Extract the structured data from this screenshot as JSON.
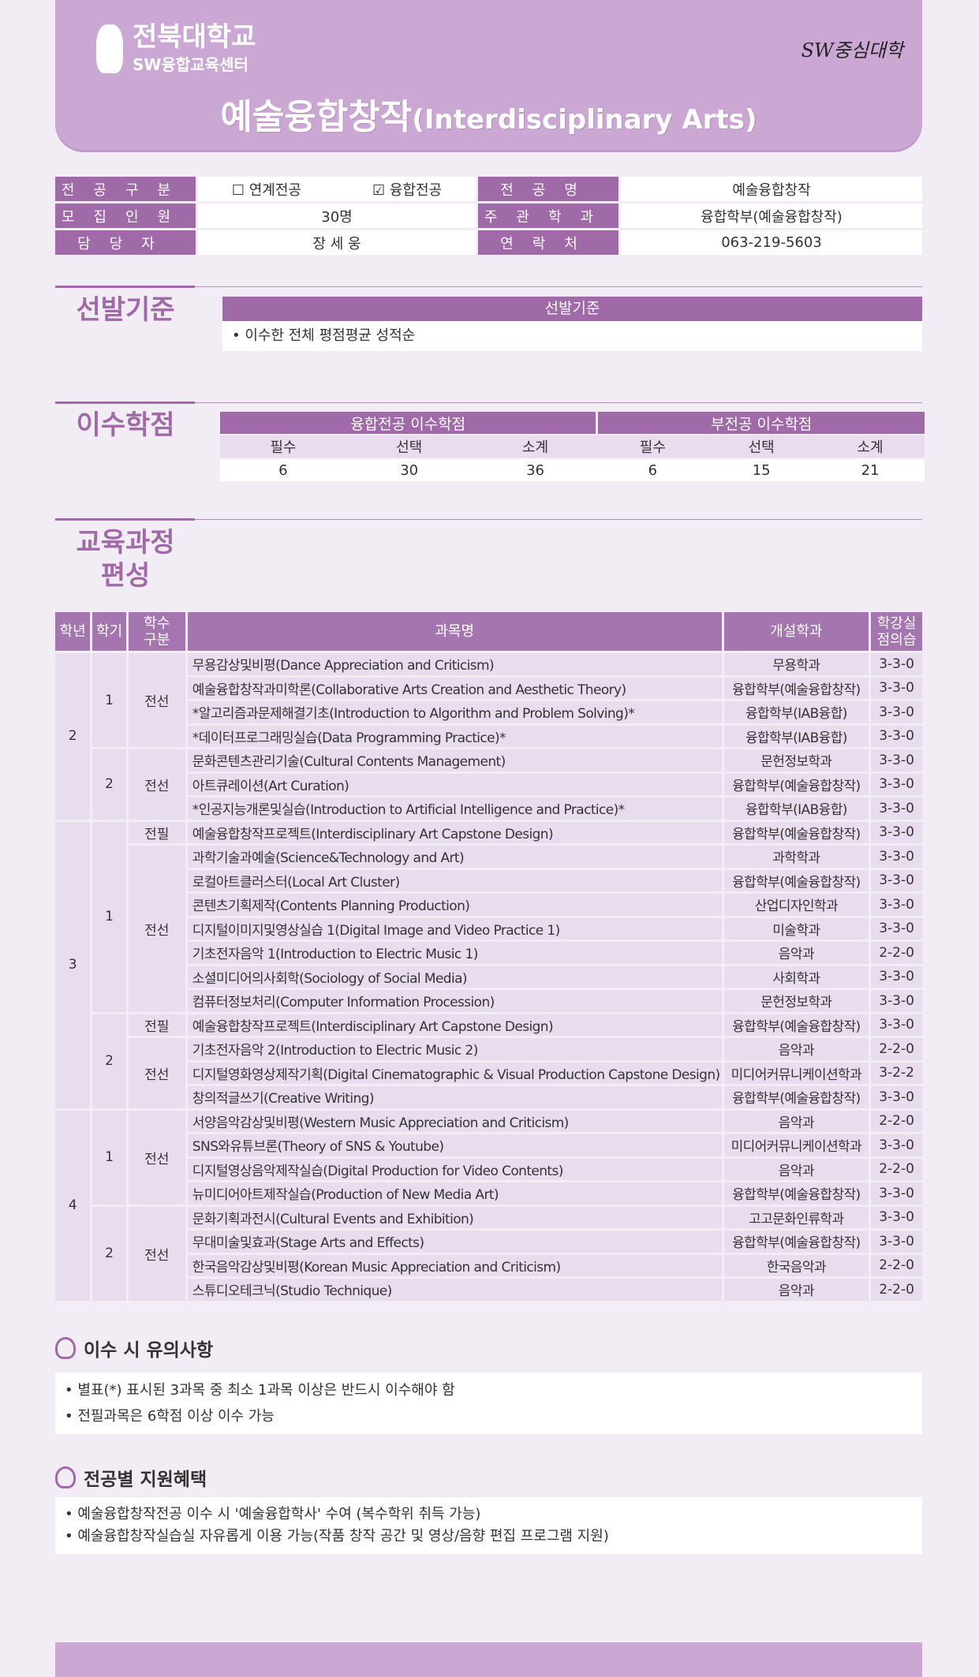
{
  "header": {
    "university": "전북대학교",
    "center": "SW융합교육센터",
    "badge": "SW중심대학",
    "title_ko": "예술융합창작",
    "title_en": "(Interdisciplinary Arts)"
  },
  "info": {
    "type_label": "전공구분",
    "opt1": "☐ 연계전공",
    "opt2": "☑ 융합전공",
    "major_label": "전공명",
    "major": "예술융합창작",
    "quota_label": "모집인원",
    "quota": "30명",
    "dept_label": "주관학과",
    "dept": "융합학부(예술융합창작)",
    "manager_label": "담당자",
    "manager": "장 세 웅",
    "contact_label": "연락처",
    "contact": "063-219-5603"
  },
  "selection": {
    "title": "선발기준",
    "header": "선발기준",
    "text": "• 이수한 전체 평점평균 성적순"
  },
  "credits": {
    "title": "이수학점",
    "major_header": "융합전공 이수학점",
    "minor_header": "부전공 이수학점",
    "sub": [
      "필수",
      "선택",
      "소계",
      "필수",
      "선택",
      "소계"
    ],
    "values": [
      "6",
      "30",
      "36",
      "6",
      "15",
      "21"
    ]
  },
  "curriculum": {
    "title1": "교육과정",
    "title2": "편성",
    "headers": {
      "year": "학년",
      "sem": "학기",
      "type": "학수\n구분",
      "name": "과목명",
      "dept": "개설학과",
      "credit": "학강실\n점의습"
    },
    "groups": [
      {
        "year": "2",
        "semesters": [
          {
            "semester": "1",
            "types": [
              {
                "type": "전선",
                "courses": [
                  {
                    "name": "무용감상및비평(Dance Appreciation and Criticism)",
                    "dept": "무용학과",
                    "credit": "3-3-0"
                  },
                  {
                    "name": "예술융합창작과미학론(Collaborative Arts Creation and Aesthetic Theory)",
                    "dept": "융합학부(예술융합창작)",
                    "credit": "3-3-0"
                  },
                  {
                    "name": "*알고리즘과문제해결기초(Introduction to Algorithm and Problem Solving)*",
                    "dept": "융합학부(IAB융합)",
                    "credit": "3-3-0"
                  },
                  {
                    "name": "*데이터프로그래밍실습(Data Programming Practice)*",
                    "dept": "융합학부(IAB융합)",
                    "credit": "3-3-0"
                  }
                ]
              }
            ]
          },
          {
            "semester": "2",
            "types": [
              {
                "type": "전선",
                "courses": [
                  {
                    "name": "문화콘텐츠관리기술(Cultural Contents Management)",
                    "dept": "문헌정보학과",
                    "credit": "3-3-0"
                  },
                  {
                    "name": "아트큐레이션(Art Curation)",
                    "dept": "융합학부(예술융합창작)",
                    "credit": "3-3-0"
                  },
                  {
                    "name": "*인공지능개론및실습(Introduction to Artificial Intelligence and Practice)*",
                    "dept": "융합학부(IAB융합)",
                    "credit": "3-3-0"
                  }
                ]
              }
            ]
          }
        ]
      },
      {
        "year": "3",
        "semesters": [
          {
            "semester": "1",
            "types": [
              {
                "type": "전필",
                "courses": [
                  {
                    "name": "예술융합창작프로젝트(Interdisciplinary Art Capstone Design)",
                    "dept": "융합학부(예술융합창작)",
                    "credit": "3-3-0"
                  }
                ]
              },
              {
                "type": "전선",
                "courses": [
                  {
                    "name": "과학기술과예술(Science&Technology and Art)",
                    "dept": "과학학과",
                    "credit": "3-3-0"
                  },
                  {
                    "name": "로컬아트클러스터(Local Art Cluster)",
                    "dept": "융합학부(예술융합창작)",
                    "credit": "3-3-0"
                  },
                  {
                    "name": "콘텐츠기획제작(Contents Planning Production)",
                    "dept": "산업디자인학과",
                    "credit": "3-3-0"
                  },
                  {
                    "name": "디지털이미지및영상실습 1(Digital Image and Video Practice 1)",
                    "dept": "미술학과",
                    "credit": "3-3-0"
                  },
                  {
                    "name": "기초전자음악 1(Introduction to Electric Music 1)",
                    "dept": "음악과",
                    "credit": "2-2-0"
                  },
                  {
                    "name": "소셜미디어의사회학(Sociology of Social Media)",
                    "dept": "사회학과",
                    "credit": "3-3-0"
                  },
                  {
                    "name": "컴퓨터정보처리(Computer Information Procession)",
                    "dept": "문헌정보학과",
                    "credit": "3-3-0"
                  }
                ]
              }
            ]
          },
          {
            "semester": "2",
            "types": [
              {
                "type": "전필",
                "courses": [
                  {
                    "name": "예술융합창작프로젝트(Interdisciplinary Art Capstone Design)",
                    "dept": "융합학부(예술융합창작)",
                    "credit": "3-3-0"
                  }
                ]
              },
              {
                "type": "전선",
                "courses": [
                  {
                    "name": "기초전자음악 2(Introduction to Electric Music 2)",
                    "dept": "음악과",
                    "credit": "2-2-0"
                  },
                  {
                    "name": "디지털영화영상제작기획(Digital Cinematographic & Visual Production Capstone Design)",
                    "dept": "미디어커뮤니케이션학과",
                    "credit": "3-2-2"
                  },
                  {
                    "name": "창의적글쓰기(Creative Writing)",
                    "dept": "융합학부(예술융합창작)",
                    "credit": "3-3-0"
                  }
                ]
              }
            ]
          }
        ]
      },
      {
        "year": "4",
        "semesters": [
          {
            "semester": "1",
            "types": [
              {
                "type": "전선",
                "courses": [
                  {
                    "name": "서양음악감상및비평(Western Music Appreciation and Criticism)",
                    "dept": "음악과",
                    "credit": "2-2-0"
                  },
                  {
                    "name": "SNS와유튜브론(Theory of SNS & Youtube)",
                    "dept": "미디어커뮤니케이션학과",
                    "credit": "3-3-0"
                  },
                  {
                    "name": "디지털영상음악제작실습(Digital Production for Video Contents)",
                    "dept": "음악과",
                    "credit": "2-2-0"
                  },
                  {
                    "name": "뉴미디어아트제작실습(Production of New Media Art)",
                    "dept": "융합학부(예술융합창작)",
                    "credit": "3-3-0"
                  }
                ]
              }
            ]
          },
          {
            "semester": "2",
            "types": [
              {
                "type": "전선",
                "courses": [
                  {
                    "name": "문화기획과전시(Cultural Events and Exhibition)",
                    "dept": "고고문화인류학과",
                    "credit": "3-3-0"
                  },
                  {
                    "name": "무대미술및효과(Stage Arts and Effects)",
                    "dept": "융합학부(예술융합창작)",
                    "credit": "3-3-0"
                  },
                  {
                    "name": "한국음악감상및비평(Korean Music Appreciation and Criticism)",
                    "dept": "한국음악과",
                    "credit": "2-2-0"
                  },
                  {
                    "name": "스튜디오테크닉(Studio Technique)",
                    "dept": "음악과",
                    "credit": "2-2-0"
                  }
                ]
              }
            ]
          }
        ]
      }
    ]
  },
  "notes": {
    "title": "이수 시 유의사항",
    "items": [
      "• 별표(*) 표시된 3과목 중 최소 1과목 이상은 반드시 이수해야 함",
      "• 전필과목은 6학점 이상 이수 가능"
    ]
  },
  "benefits": {
    "title": "전공별 지원혜택",
    "items": [
      "• 예술융합창작전공 이수 시 '예술융합학사' 수여 (복수학위 취득 가능)",
      "• 예술융합창작실습실 자유롭게 이용 가능(작품 창작 공간 및 영상/음향 편집 프로그램 지원)"
    ]
  }
}
